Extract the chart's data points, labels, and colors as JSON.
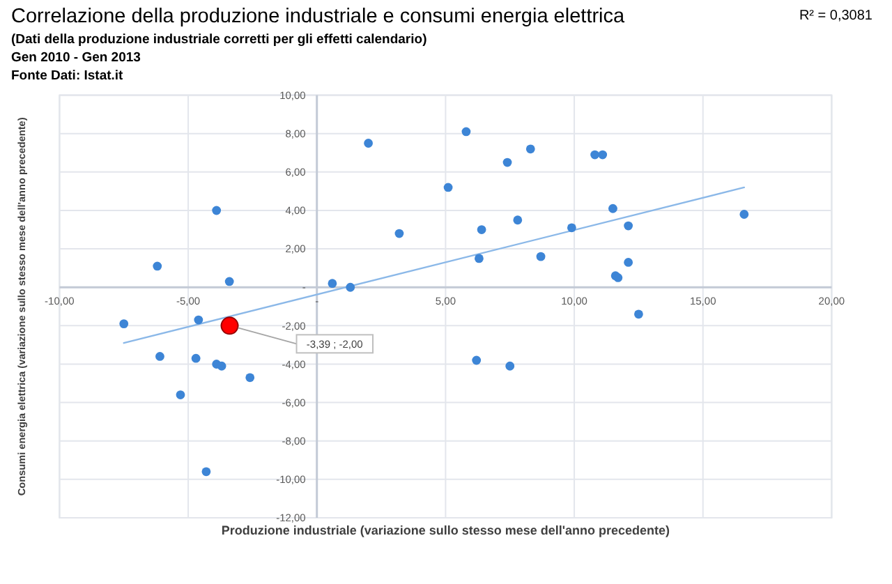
{
  "chart_data": {
    "type": "scatter",
    "title": "Correlazione della produzione industriale e consumi energia elettrica",
    "subtitle": "(Dati della produzione industriale corretti per gli effetti calendario)",
    "annotations": [
      "Gen 2010 - Gen 2013",
      "Fonte Dati: Istat.it",
      "R² = 0,3081"
    ],
    "xlabel": "Produzione industriale (variazione sullo stesso mese dell'anno precedente)",
    "ylabel": "Consumi energia elettrica (variazione sullo stesso mese dell'anno precedente)",
    "xlim": [
      -10,
      20
    ],
    "xticks": [
      {
        "value": -10,
        "label": "-10,00"
      },
      {
        "value": -5,
        "label": "-5,00"
      },
      {
        "value": 0,
        "label": "-"
      },
      {
        "value": 5,
        "label": "5,00"
      },
      {
        "value": 10,
        "label": "10,00"
      },
      {
        "value": 15,
        "label": "15,00"
      },
      {
        "value": 20,
        "label": "20,00"
      }
    ],
    "ylim": [
      -12,
      10
    ],
    "yticks": [
      {
        "value": -12,
        "label": "-12,00"
      },
      {
        "value": -10,
        "label": "-10,00"
      },
      {
        "value": -8,
        "label": "-8,00"
      },
      {
        "value": -6,
        "label": "-6,00"
      },
      {
        "value": -4,
        "label": "-4,00"
      },
      {
        "value": -2,
        "label": "-2,00"
      },
      {
        "value": 0,
        "label": "-"
      },
      {
        "value": 2,
        "label": "2,00"
      },
      {
        "value": 4,
        "label": "4,00"
      },
      {
        "value": 6,
        "label": "6,00"
      },
      {
        "value": 8,
        "label": "8,00"
      },
      {
        "value": 10,
        "label": "10,00"
      }
    ],
    "grid": true,
    "marker": "circle",
    "series": [
      {
        "type": "scatter",
        "color": "#3d85d6",
        "x": [
          -7.5,
          -6.2,
          -6.1,
          -5.3,
          -4.7,
          -4.6,
          -4.3,
          -3.9,
          -3.9,
          -3.7,
          -3.4,
          -2.6,
          0.6,
          1.3,
          2.0,
          3.2,
          5.1,
          5.8,
          6.2,
          6.3,
          6.4,
          7.4,
          7.5,
          7.8,
          8.3,
          8.7,
          9.9,
          10.8,
          11.1,
          11.5,
          11.6,
          11.7,
          12.1,
          12.1,
          12.5,
          16.6
        ],
        "values": [
          -1.9,
          1.1,
          -3.6,
          -5.6,
          -3.7,
          -1.7,
          -9.6,
          4.0,
          -4.0,
          -4.1,
          0.3,
          -4.7,
          0.2,
          0.0,
          7.5,
          2.8,
          5.2,
          8.1,
          -3.8,
          1.5,
          3.0,
          6.5,
          -4.1,
          3.5,
          7.2,
          1.6,
          3.1,
          6.9,
          6.9,
          4.1,
          0.6,
          0.5,
          1.3,
          3.2,
          -1.4,
          3.8
        ]
      },
      {
        "type": "scatter",
        "color": "#ff0000",
        "x": [
          -3.39
        ],
        "values": [
          -2.0
        ],
        "value_labels": [
          "-3,39 ; -2,00"
        ]
      },
      {
        "type": "line",
        "color": "#8bb8e8",
        "marker": "none",
        "line_style": "solid",
        "x": [
          -7.5,
          16.6
        ],
        "values": [
          -2.9,
          5.2
        ]
      }
    ]
  }
}
